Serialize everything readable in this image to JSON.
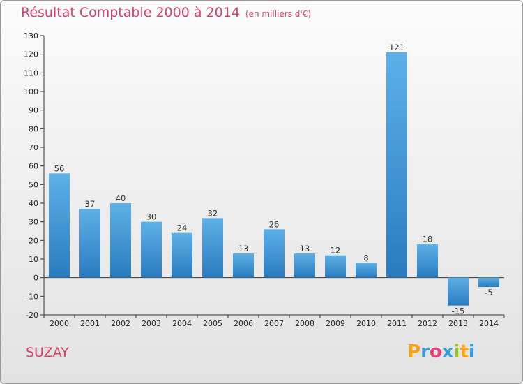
{
  "chart_data": {
    "type": "bar",
    "title": "Résultat Comptable 2000 à 2014",
    "subtitle": "(en milliers d'€)",
    "categories": [
      "2000",
      "2001",
      "2002",
      "2003",
      "2004",
      "2005",
      "2006",
      "2007",
      "2008",
      "2009",
      "2010",
      "2011",
      "2012",
      "2013",
      "2014"
    ],
    "values": [
      56,
      37,
      40,
      30,
      24,
      32,
      13,
      26,
      13,
      12,
      8,
      121,
      18,
      -15,
      -5
    ],
    "value_labels": [
      "56",
      "37",
      "40",
      "30",
      "24",
      "32",
      "13",
      "26",
      "13",
      "12",
      "8",
      "121",
      "18",
      "-15",
      "-5"
    ],
    "ylim": [
      -20,
      130
    ],
    "yticks": [
      130,
      120,
      110,
      100,
      90,
      80,
      70,
      60,
      50,
      40,
      30,
      20,
      10,
      0,
      -10,
      -20
    ],
    "grid": false,
    "xlabel": "",
    "ylabel": ""
  },
  "location_name": "SUZAY",
  "brand": {
    "letters": [
      "P",
      "r",
      "o",
      "x",
      "i",
      "t",
      "i"
    ],
    "letter_colors": [
      "#f7a21a",
      "#3a9bd6",
      "#e8407a",
      "#3a9bd6",
      "#9ac12b",
      "#f7a21a",
      "#3a9bd6"
    ]
  },
  "colors": {
    "bar_top": "#5eb0e8",
    "bar_bottom": "#2a7bbd",
    "title": "#d6406b"
  }
}
